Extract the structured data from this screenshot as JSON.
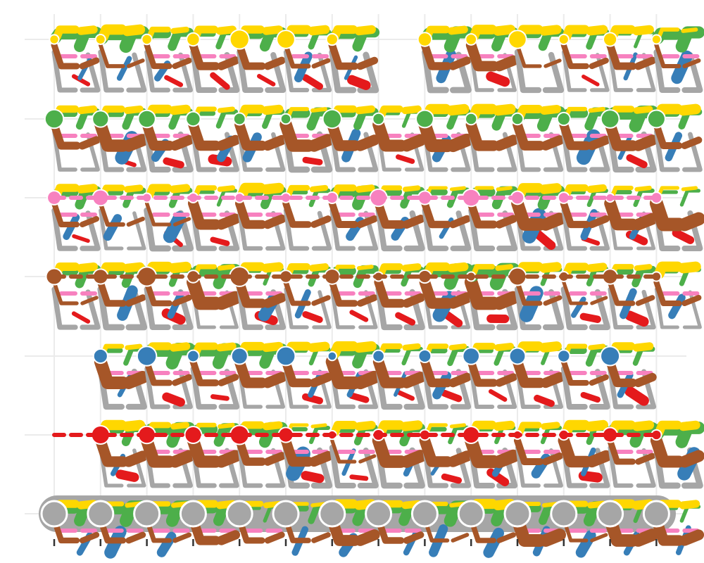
{
  "chart_data": {
    "type": "other",
    "description_kind": "small-multiples grid of colored line glyphs",
    "columns": 14,
    "rows": 7,
    "grid": true,
    "x_ticks": 14,
    "colors": {
      "gray": "#a6a6a6",
      "red": "#e41a1c",
      "blue": "#377eb8",
      "green": "#4daf4a",
      "pink": "#f781bf",
      "brown": "#a65628",
      "yellow": "#ffd700",
      "grid": "#ebebeb",
      "tick": "#333333"
    },
    "rows_data": [
      {
        "focus": "yellow",
        "present": [
          1,
          1,
          1,
          1,
          1,
          1,
          1,
          0,
          1,
          1,
          1,
          1,
          1,
          1
        ]
      },
      {
        "focus": "green",
        "present": [
          1,
          1,
          1,
          1,
          1,
          1,
          1,
          1,
          1,
          1,
          1,
          1,
          1,
          1
        ]
      },
      {
        "focus": "pink",
        "present": [
          1,
          1,
          1,
          1,
          1,
          1,
          1,
          1,
          1,
          1,
          1,
          1,
          1,
          1
        ]
      },
      {
        "focus": "brown",
        "present": [
          1,
          1,
          1,
          1,
          1,
          1,
          1,
          1,
          1,
          1,
          1,
          1,
          1,
          1
        ]
      },
      {
        "focus": "blue",
        "present": [
          0,
          1,
          1,
          1,
          1,
          1,
          1,
          1,
          1,
          1,
          1,
          1,
          1,
          0
        ]
      },
      {
        "focus": "red",
        "present": [
          0,
          1,
          1,
          1,
          1,
          1,
          1,
          1,
          1,
          1,
          1,
          1,
          1,
          1
        ]
      },
      {
        "focus": "gray",
        "present": [
          1,
          1,
          1,
          1,
          1,
          1,
          1,
          1,
          1,
          1,
          1,
          1,
          1,
          1
        ]
      }
    ]
  }
}
